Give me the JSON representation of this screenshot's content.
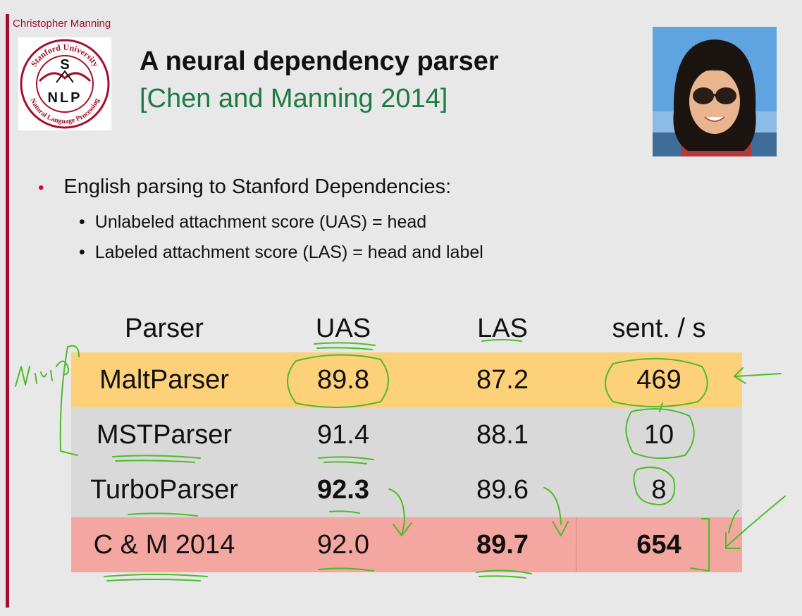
{
  "author": "Christopher Manning",
  "logo": {
    "top_text": "Stanford University",
    "bottom_text": "Natural Language Processing",
    "mark_top": "S",
    "mark_bottom": "NLP"
  },
  "title": "A neural dependency parser",
  "subtitle": "[Chen and Manning 2014]",
  "photo_icon": "person-photo",
  "bullets": {
    "main": "English parsing to Stanford Dependencies:",
    "subs": [
      "Unlabeled attachment score (UAS) = head",
      "Labeled attachment score (LAS) = head and label"
    ]
  },
  "table": {
    "headers": [
      "Parser",
      "UAS",
      "LAS",
      "sent. / s"
    ],
    "rows": [
      {
        "parser": "MaltParser",
        "uas": "89.8",
        "las": "87.2",
        "speed": "469"
      },
      {
        "parser": "MSTParser",
        "uas": "91.4",
        "las": "88.1",
        "speed": "10"
      },
      {
        "parser": "TurboParser",
        "uas": "92.3",
        "las": "89.6",
        "speed": "8"
      },
      {
        "parser": "C & M 2014",
        "uas": "92.0",
        "las": "89.7",
        "speed": "654"
      }
    ]
  },
  "colors": {
    "accent_red": "#a50f2d",
    "subtitle_green": "#1e7a45",
    "malt_row": "#fdd07a",
    "gray_row": "#d9d9d9",
    "cm_row": "#f4a6a1",
    "ink_green": "#4dbb2a"
  }
}
